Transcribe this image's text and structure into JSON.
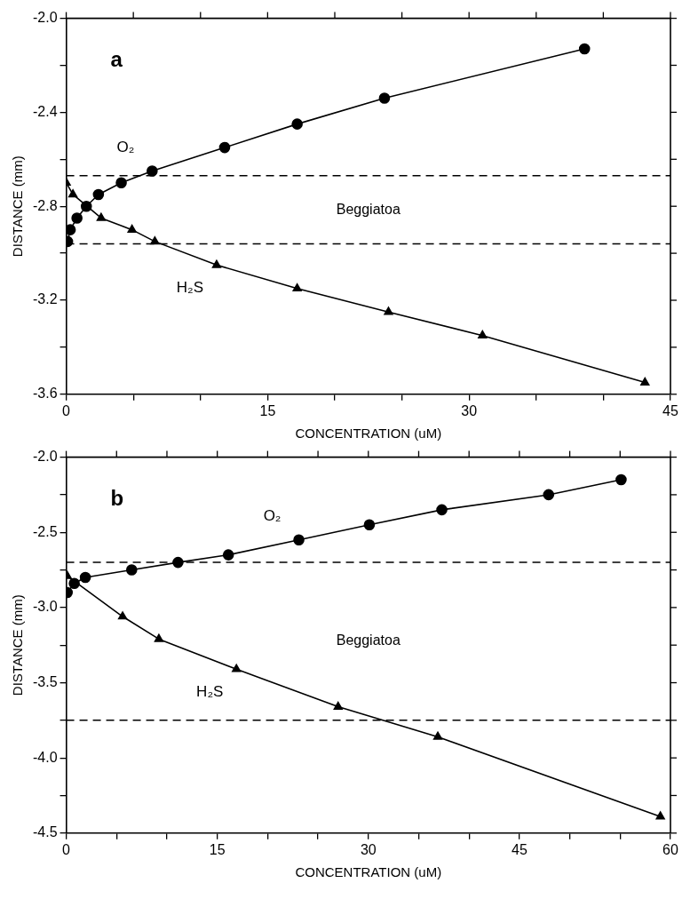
{
  "chart_data": [
    {
      "type": "line",
      "xlabel": "CONCENTRATION (uM)",
      "ylabel": "DISTANCE (mm)",
      "line_style": "solid",
      "grid": false,
      "legend": false,
      "xlim": [
        0,
        45
      ],
      "ylim": [
        -3.6,
        -2.0
      ],
      "xticks": [
        0,
        {
          "value": 5,
          "label": null
        },
        {
          "value": 10,
          "label": null
        },
        15,
        {
          "value": 20,
          "label": null
        },
        {
          "value": 25,
          "label": null
        },
        30,
        {
          "value": 35,
          "label": null
        },
        {
          "value": 40,
          "label": null
        },
        45
      ],
      "yticks": [
        -3.6,
        {
          "value": -3.4,
          "label": null
        },
        -3.2,
        {
          "value": -3.0,
          "label": null
        },
        -2.8,
        {
          "value": -2.6,
          "label": null
        },
        -2.4,
        {
          "value": -2.2,
          "label": null
        },
        {
          "value": -2.0,
          "label": "-2.0"
        }
      ],
      "series": [
        {
          "name": "O₂",
          "color": "#000000",
          "marker": "circle",
          "x": [
            0.1,
            0.3,
            0.8,
            1.5,
            2.4,
            4.1,
            6.4,
            11.8,
            17.2,
            23.7,
            38.6
          ],
          "values": [
            -2.95,
            -2.9,
            -2.85,
            -2.8,
            -2.75,
            -2.7,
            -2.65,
            -2.55,
            -2.45,
            -2.34,
            -2.13
          ]
        },
        {
          "name": "H₂S",
          "color": "#000000",
          "marker": "triangle",
          "x": [
            0,
            0.5,
            1.5,
            2.6,
            4.9,
            6.6,
            11.2,
            17.2,
            24.0,
            31.0,
            43.1
          ],
          "values": [
            -2.7,
            -2.75,
            null,
            -2.85,
            -2.9,
            -2.95,
            -3.05,
            -3.15,
            -3.25,
            -3.35,
            -3.55
          ]
        }
      ],
      "ref_lines": [
        {
          "axis": "y",
          "value": -2.67,
          "line_style": "dashed",
          "color": "#000000"
        },
        {
          "axis": "y",
          "value": -2.96,
          "line_style": "dashed",
          "color": "#000000"
        }
      ],
      "annotations": [
        "a",
        "Beggiatoa"
      ]
    },
    {
      "type": "line",
      "xlabel": "CONCENTRATION (uM)",
      "ylabel": "DISTANCE (mm)",
      "line_style": "solid",
      "grid": false,
      "legend": false,
      "xlim": [
        0,
        60
      ],
      "ylim": [
        -4.5,
        -2.0
      ],
      "xticks": [
        0,
        {
          "value": 5,
          "label": null
        },
        {
          "value": 10,
          "label": null
        },
        15,
        {
          "value": 20,
          "label": null
        },
        {
          "value": 25,
          "label": null
        },
        30,
        {
          "value": 35,
          "label": null
        },
        {
          "value": 40,
          "label": null
        },
        45,
        {
          "value": 50,
          "label": null
        },
        {
          "value": 55,
          "label": null
        },
        60
      ],
      "yticks": [
        {
          "value": -4.5,
          "label": "-4.5"
        },
        {
          "value": -4.25,
          "label": null
        },
        {
          "value": -4.0,
          "label": "-4.0"
        },
        {
          "value": -3.75,
          "label": null
        },
        {
          "value": -3.5,
          "label": "-3.5"
        },
        {
          "value": -3.25,
          "label": null
        },
        {
          "value": -3.0,
          "label": "-3.0"
        },
        {
          "value": -2.75,
          "label": null
        },
        {
          "value": -2.5,
          "label": "-2.5"
        },
        {
          "value": -2.25,
          "label": null
        },
        {
          "value": -2.0,
          "label": "-2.0"
        }
      ],
      "series": [
        {
          "name": "O₂",
          "color": "#000000",
          "marker": "circle",
          "x": [
            0.1,
            0.8,
            1.9,
            6.5,
            11.1,
            16.1,
            23.1,
            30.1,
            37.3,
            47.9,
            55.1
          ],
          "values": [
            -2.9,
            -2.84,
            -2.8,
            -2.75,
            -2.7,
            -2.65,
            -2.55,
            -2.45,
            -2.35,
            -2.25,
            -2.15
          ]
        },
        {
          "name": "H₂S",
          "color": "#000000",
          "marker": "triangle",
          "x": [
            0.1,
            0.8,
            5.6,
            9.2,
            16.9,
            27.0,
            36.9,
            59.0
          ],
          "values": [
            -2.79,
            null,
            -3.06,
            -3.21,
            -3.41,
            -3.66,
            -3.86,
            -4.39
          ]
        }
      ],
      "ref_lines": [
        {
          "axis": "y",
          "value": -2.7,
          "line_style": "dashed",
          "color": "#000000"
        },
        {
          "axis": "y",
          "value": -3.75,
          "line_style": "dashed",
          "color": "#000000"
        }
      ],
      "annotations": [
        "b",
        "Beggiatoa"
      ]
    }
  ]
}
